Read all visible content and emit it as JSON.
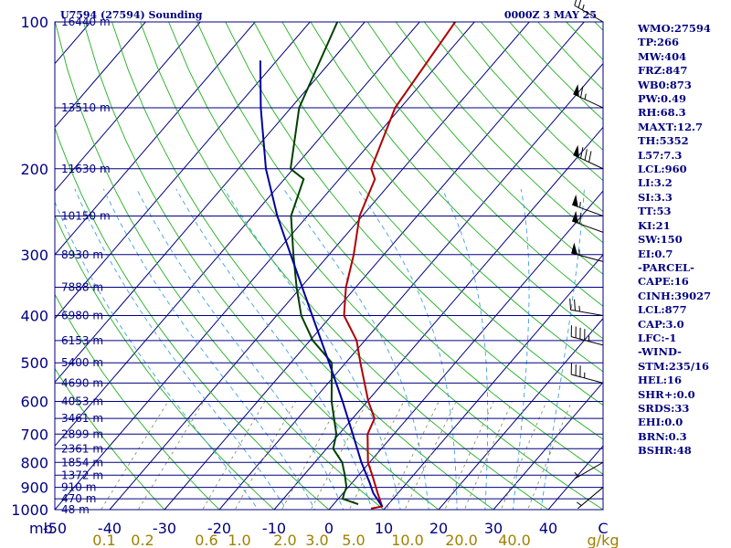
{
  "header": {
    "left": "U7594 (27594) Sounding",
    "right": "0000Z  3 MAY 25"
  },
  "indices": [
    "WMO:27594",
    "TP:266",
    "MW:404",
    "FRZ:847",
    "WB0:873",
    "PW:0.49",
    "RH:68.3",
    "MAXT:12.7",
    "TH:5352",
    "L57:7.3",
    "LCL:960",
    "LI:3.2",
    "SI:3.3",
    "TT:53",
    "KI:21",
    "SW:150",
    "EI:0.7",
    "-PARCEL-",
    "CAPE:16",
    "CINH:39027",
    "LCL:877",
    "CAP:3.0",
    "LFC:-1",
    "-WIND-",
    "STM:235/16",
    "HEL:16",
    "SHR+:0.0",
    "SRDS:33",
    "EHI:0.0",
    "BRN:0.3",
    "BSHR:48"
  ],
  "chart_data": {
    "type": "line",
    "subtype": "skew-T log-P sounding",
    "y_axis": {
      "label": "mb",
      "scale": "log",
      "range": [
        1000,
        100
      ],
      "ticks": [
        "100",
        "200",
        "300",
        "400",
        "500",
        "600",
        "700",
        "800",
        "900",
        "1000"
      ]
    },
    "x_axis": {
      "label": "C",
      "range": [
        -50,
        50
      ],
      "ticks": [
        "-50",
        "-40",
        "-30",
        "-20",
        "-10",
        "0",
        "10",
        "20",
        "30",
        "40"
      ]
    },
    "mixing_ratio_axis": {
      "label": "g/kg",
      "ticks": [
        "0.1",
        "0.2",
        "0.6",
        "1.0",
        "2.0",
        "3.0",
        "5.0",
        "10.0",
        "20.0",
        "40.0"
      ]
    },
    "height_labels": [
      {
        "p": 100,
        "label": "16440 m"
      },
      {
        "p": 150,
        "label": "13510 m"
      },
      {
        "p": 200,
        "label": "11630 m"
      },
      {
        "p": 250,
        "label": "10150 m"
      },
      {
        "p": 300,
        "label": "8930 m"
      },
      {
        "p": 350,
        "label": "7888 m"
      },
      {
        "p": 400,
        "label": "6980 m"
      },
      {
        "p": 450,
        "label": "6153 m"
      },
      {
        "p": 500,
        "label": "5400 m"
      },
      {
        "p": 550,
        "label": "4690 m"
      },
      {
        "p": 600,
        "label": "4053 m"
      },
      {
        "p": 650,
        "label": "3461 m"
      },
      {
        "p": 700,
        "label": "2899 m"
      },
      {
        "p": 750,
        "label": "2361 m"
      },
      {
        "p": 800,
        "label": "1854 m"
      },
      {
        "p": 850,
        "label": "1372 m"
      },
      {
        "p": 900,
        "label": "910 m"
      },
      {
        "p": 950,
        "label": "470 m"
      },
      {
        "p": 1000,
        "label": "48 m"
      }
    ],
    "series": [
      {
        "name": "Temperature",
        "color": "#b00000",
        "points": [
          [
            995,
            7.5
          ],
          [
            985,
            9.2
          ],
          [
            925,
            6.3
          ],
          [
            850,
            2.5
          ],
          [
            800,
            -0.3
          ],
          [
            700,
            -4.8
          ],
          [
            650,
            -6
          ],
          [
            600,
            -9.8
          ],
          [
            500,
            -17.3
          ],
          [
            450,
            -21.5
          ],
          [
            400,
            -27.7
          ],
          [
            350,
            -31.8
          ],
          [
            300,
            -35.5
          ],
          [
            250,
            -40.5
          ],
          [
            210,
            -43.5
          ],
          [
            200,
            -45.8
          ],
          [
            150,
            -51
          ],
          [
            100,
            -53.5
          ]
        ]
      },
      {
        "name": "Dewpoint",
        "color": "#004000",
        "points": [
          [
            975,
            4.5
          ],
          [
            950,
            0.8
          ],
          [
            925,
            0.2
          ],
          [
            900,
            -0.3
          ],
          [
            850,
            -2.5
          ],
          [
            800,
            -5
          ],
          [
            750,
            -8.8
          ],
          [
            700,
            -10.5
          ],
          [
            600,
            -16.5
          ],
          [
            500,
            -22.5
          ],
          [
            450,
            -29.5
          ],
          [
            400,
            -35.5
          ],
          [
            350,
            -40.8
          ],
          [
            300,
            -46.5
          ],
          [
            250,
            -53
          ],
          [
            210,
            -56.5
          ],
          [
            200,
            -60.5
          ],
          [
            150,
            -68.5
          ],
          [
            100,
            -75
          ]
        ]
      },
      {
        "name": "Parcel",
        "color": "#0000a0",
        "points": [
          [
            985,
            9.2
          ],
          [
            925,
            5.5
          ],
          [
            877,
            3
          ],
          [
            800,
            -1.5
          ],
          [
            700,
            -7.5
          ],
          [
            600,
            -14.5
          ],
          [
            500,
            -23
          ],
          [
            400,
            -33.5
          ],
          [
            300,
            -47
          ],
          [
            250,
            -55.5
          ],
          [
            200,
            -65
          ],
          [
            150,
            -75.5
          ],
          [
            120,
            -83
          ]
        ]
      }
    ],
    "wind_barbs": [
      {
        "p": 100,
        "dir": 300,
        "spd": 25
      },
      {
        "p": 150,
        "dir": 295,
        "spd": 65
      },
      {
        "p": 200,
        "dir": 295,
        "spd": 80
      },
      {
        "p": 250,
        "dir": 290,
        "spd": 55
      },
      {
        "p": 270,
        "dir": 290,
        "spd": 60
      },
      {
        "p": 310,
        "dir": 285,
        "spd": 55
      },
      {
        "p": 400,
        "dir": 280,
        "spd": 25
      },
      {
        "p": 460,
        "dir": 285,
        "spd": 45
      },
      {
        "p": 550,
        "dir": 285,
        "spd": 35
      },
      {
        "p": 800,
        "dir": 240,
        "spd": 5
      },
      {
        "p": 900,
        "dir": 230,
        "spd": 5
      }
    ]
  }
}
